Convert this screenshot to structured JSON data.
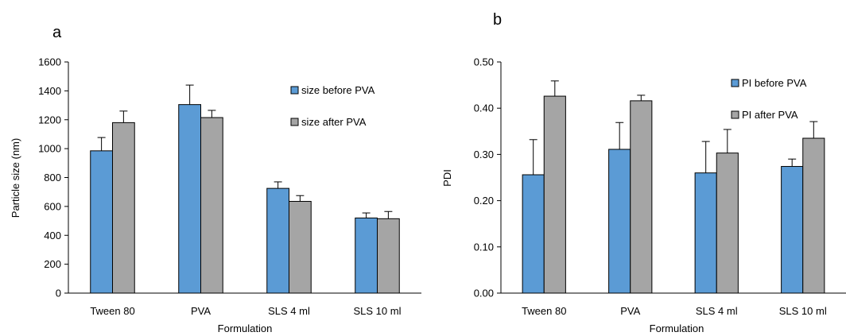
{
  "colors": {
    "before": "#5B9BD5",
    "after": "#A5A5A5",
    "stroke": "#000000"
  },
  "chart_data": [
    {
      "type": "bar",
      "panel_label": "a",
      "xlabel": "Formulation",
      "ylabel": "Particle size (nm)",
      "ylim": [
        0,
        1600
      ],
      "yticks": [
        "0",
        "200",
        "400",
        "600",
        "800",
        "1000",
        "1200",
        "1400",
        "1600"
      ],
      "categories": [
        "Tween 80",
        "PVA",
        "SLS 4 ml",
        "SLS 10 ml"
      ],
      "legend_position": "top-right",
      "series": [
        {
          "name": "size before PVA",
          "values": [
            985,
            1305,
            725,
            520
          ],
          "errors": [
            92,
            135,
            45,
            35
          ]
        },
        {
          "name": "size after PVA",
          "values": [
            1180,
            1215,
            635,
            515
          ],
          "errors": [
            80,
            50,
            40,
            50
          ]
        }
      ]
    },
    {
      "type": "bar",
      "panel_label": "b",
      "xlabel": "Formulation",
      "ylabel": "PDI",
      "ylim": [
        0,
        0.5
      ],
      "yticks": [
        "0.00",
        "0.10",
        "0.20",
        "0.30",
        "0.40",
        "0.50"
      ],
      "categories": [
        "Tween 80",
        "PVA",
        "SLS 4 ml",
        "SLS 10 ml"
      ],
      "legend_position": "top-right",
      "series": [
        {
          "name": "PI before PVA",
          "values": [
            0.256,
            0.311,
            0.26,
            0.274
          ],
          "errors": [
            0.076,
            0.058,
            0.068,
            0.016
          ]
        },
        {
          "name": "PI after PVA",
          "values": [
            0.426,
            0.416,
            0.303,
            0.335
          ],
          "errors": [
            0.033,
            0.012,
            0.051,
            0.036
          ]
        }
      ]
    }
  ]
}
